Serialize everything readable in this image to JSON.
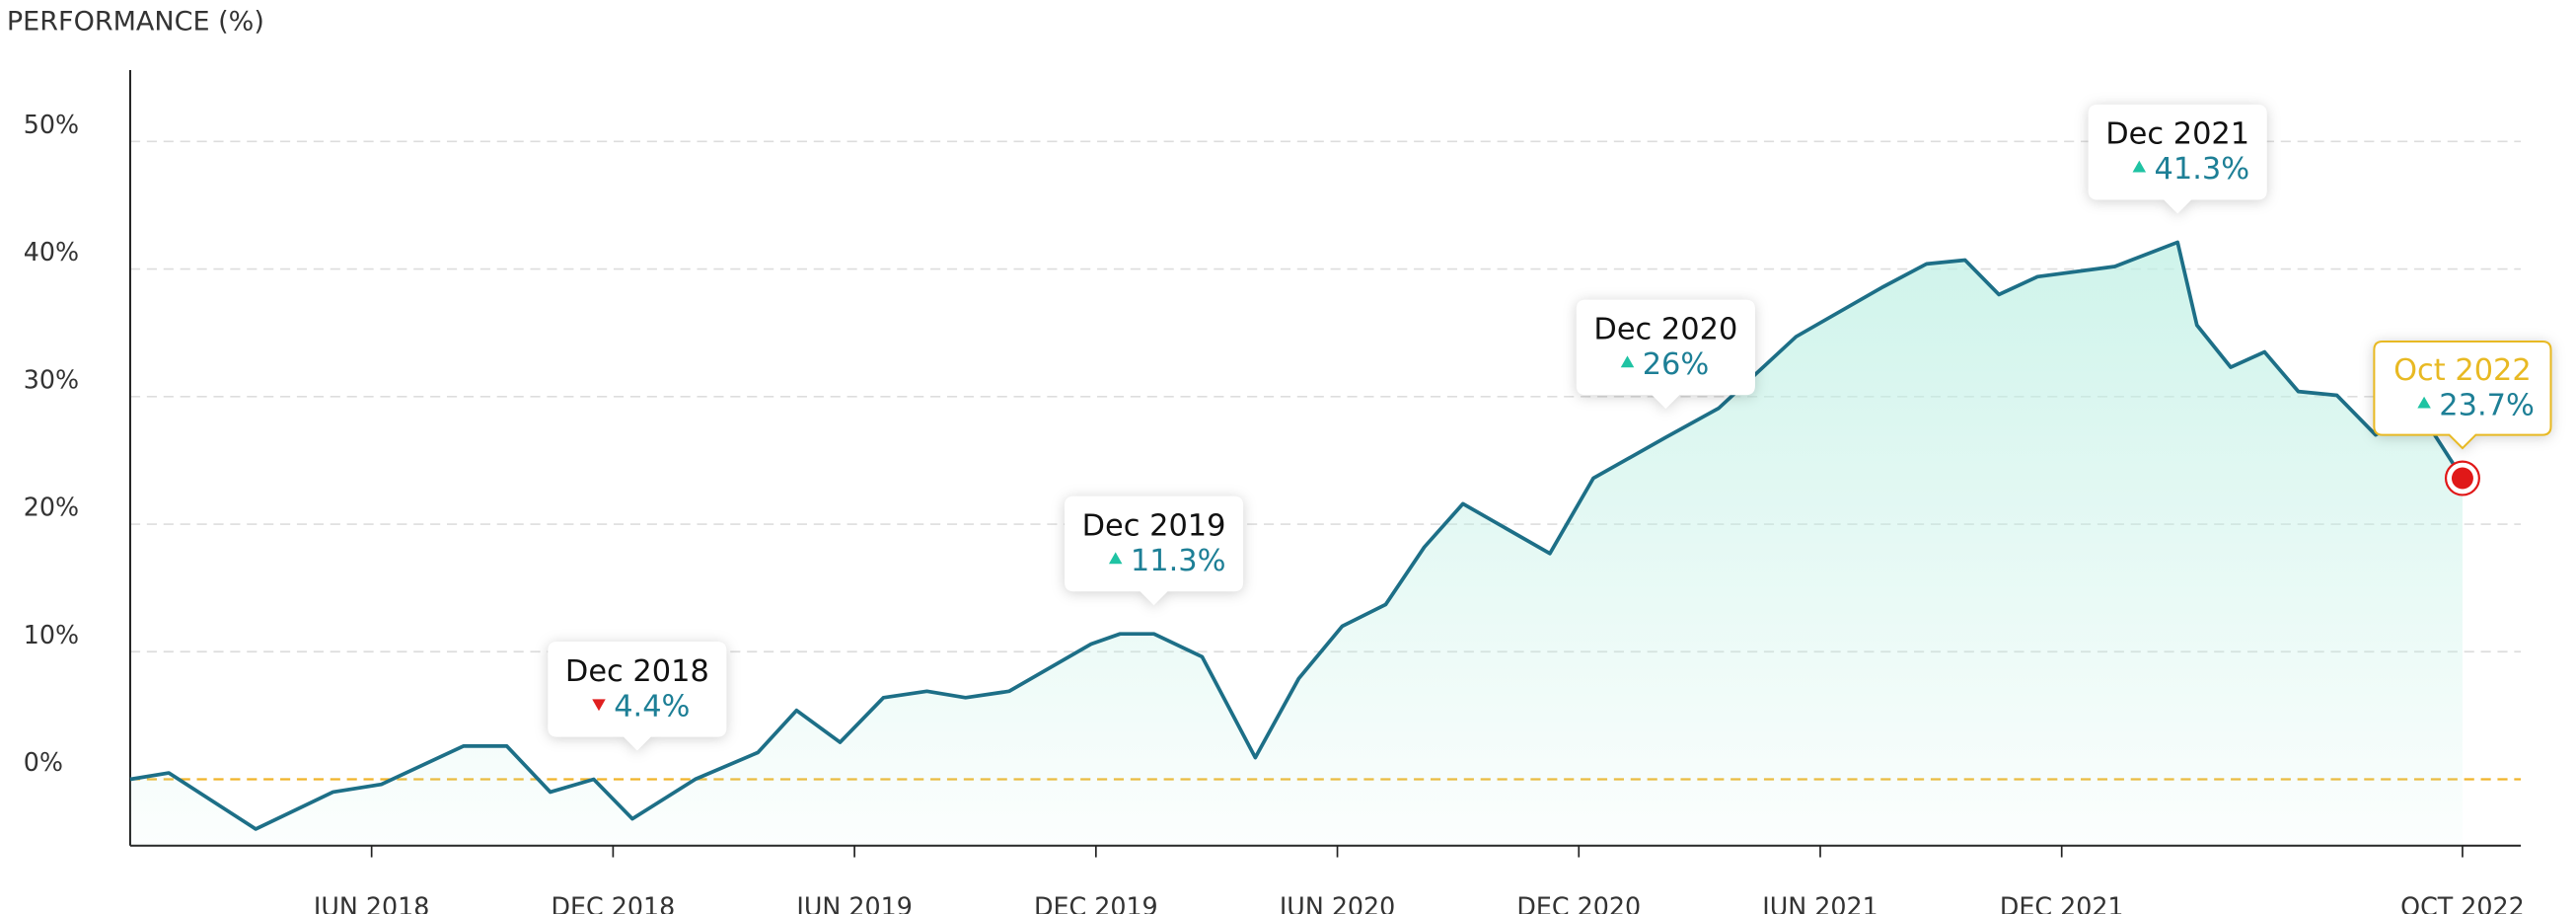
{
  "chart_data": {
    "type": "area",
    "y_axis_title": "PERFORMANCE (%)",
    "line_color": "#1d6f87",
    "fill_color": "#bff0e4",
    "zero_line_color": "#f0b429",
    "grid": true,
    "xlim": [
      2017.92,
      2022.75
    ],
    "ylim": [
      -5.2,
      55.6
    ],
    "yticks": [
      {
        "value": 0,
        "label": "0%"
      },
      {
        "value": 10,
        "label": "10%"
      },
      {
        "value": 20,
        "label": "20%"
      },
      {
        "value": 30,
        "label": "30%"
      },
      {
        "value": 40,
        "label": "40%"
      },
      {
        "value": 50,
        "label": "50%"
      }
    ],
    "xticks": [
      {
        "value": 2018.42,
        "label": "JUN 2018"
      },
      {
        "value": 2018.92,
        "label": "DEC 2018"
      },
      {
        "value": 2019.42,
        "label": "JUN 2019"
      },
      {
        "value": 2019.92,
        "label": "DEC 2019"
      },
      {
        "value": 2020.42,
        "label": "JUN 2020"
      },
      {
        "value": 2020.92,
        "label": "DEC 2020"
      },
      {
        "value": 2021.42,
        "label": "JUN 2021"
      },
      {
        "value": 2021.92,
        "label": "DEC 2021"
      },
      {
        "value": 2022.75,
        "label": "OCT 2022"
      }
    ],
    "x": [
      2017.92,
      2018.0,
      2018.18,
      2018.34,
      2018.44,
      2018.61,
      2018.7,
      2018.79,
      2018.88,
      2018.96,
      2019.09,
      2019.22,
      2019.3,
      2019.39,
      2019.48,
      2019.57,
      2019.65,
      2019.74,
      2019.91,
      2019.97,
      2020.04,
      2020.14,
      2020.25,
      2020.34,
      2020.43,
      2020.52,
      2020.6,
      2020.68,
      2020.86,
      2020.95,
      2021.1,
      2021.21,
      2021.37,
      2021.55,
      2021.64,
      2021.72,
      2021.79,
      2021.87,
      2022.03,
      2022.16,
      2022.2,
      2022.27,
      2022.34,
      2022.41,
      2022.49,
      2022.57,
      2022.66,
      2022.75
    ],
    "values": [
      0,
      0.5,
      -3.9,
      -1,
      -0.4,
      2.6,
      2.6,
      -1,
      0,
      -3.1,
      0,
      2.1,
      5.4,
      2.9,
      6.4,
      6.9,
      6.4,
      6.9,
      10.6,
      11.4,
      11.4,
      9.6,
      1.7,
      7.9,
      12,
      13.7,
      18.2,
      21.6,
      17.7,
      23.6,
      26.8,
      29.1,
      34.7,
      38.6,
      40.4,
      40.7,
      38,
      39.4,
      40.2,
      42.1,
      35.6,
      32.3,
      33.5,
      30.4,
      30.1,
      27,
      28.9,
      23.6
    ],
    "annotations": [
      {
        "label": "Dec 2018",
        "x": 2018.97,
        "value": 4.4,
        "value_label": "4.4%",
        "direction": "down"
      },
      {
        "label": "Dec 2019",
        "x": 2020.04,
        "value": 11.3,
        "value_label": "11.3%",
        "direction": "up"
      },
      {
        "label": "Dec 2020",
        "x": 2021.1,
        "value": 26,
        "value_label": "26%",
        "direction": "up"
      },
      {
        "label": "Dec 2021",
        "x": 2022.16,
        "value": 41.3,
        "value_label": "41.3%",
        "direction": "up"
      },
      {
        "label": "Oct 2022",
        "x": 2022.75,
        "value": 23.7,
        "value_label": "23.7%",
        "direction": "up",
        "highlight": "#e8b923"
      }
    ]
  }
}
